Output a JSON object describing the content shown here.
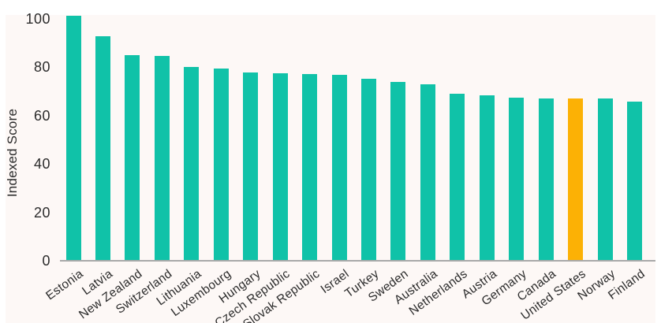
{
  "chart_data": {
    "type": "bar",
    "title": "",
    "xlabel": "",
    "ylabel": "Indexed Score",
    "categories": [
      "Estonia",
      "Latvia",
      "New Zealand",
      "Switzerland",
      "Lithuania",
      "Luxembourg",
      "Hungary",
      "Czech Republic",
      "Slovak Republic",
      "Israel",
      "Turkey",
      "Sweden",
      "Australia",
      "Netherlands",
      "Austria",
      "Germany",
      "Canada",
      "United States",
      "Norway",
      "Finland"
    ],
    "values": [
      101,
      92.7,
      85,
      84.4,
      80,
      79.3,
      77.8,
      77.5,
      77.1,
      76.9,
      75.1,
      73.7,
      72.7,
      68.9,
      68.3,
      67.4,
      67.1,
      67.1,
      66.9,
      65.6
    ],
    "yticks": [
      0,
      20,
      40,
      60,
      80,
      100
    ],
    "ylim": [
      0,
      105
    ],
    "grid": false,
    "legend": false,
    "highlight_category": "United States",
    "colors": {
      "bar": "#10c2a8",
      "highlight": "#fcb105",
      "plot_background": "#fdf8f6",
      "axis_line": "#a9a9a9",
      "text": "#2b2b2b"
    }
  }
}
